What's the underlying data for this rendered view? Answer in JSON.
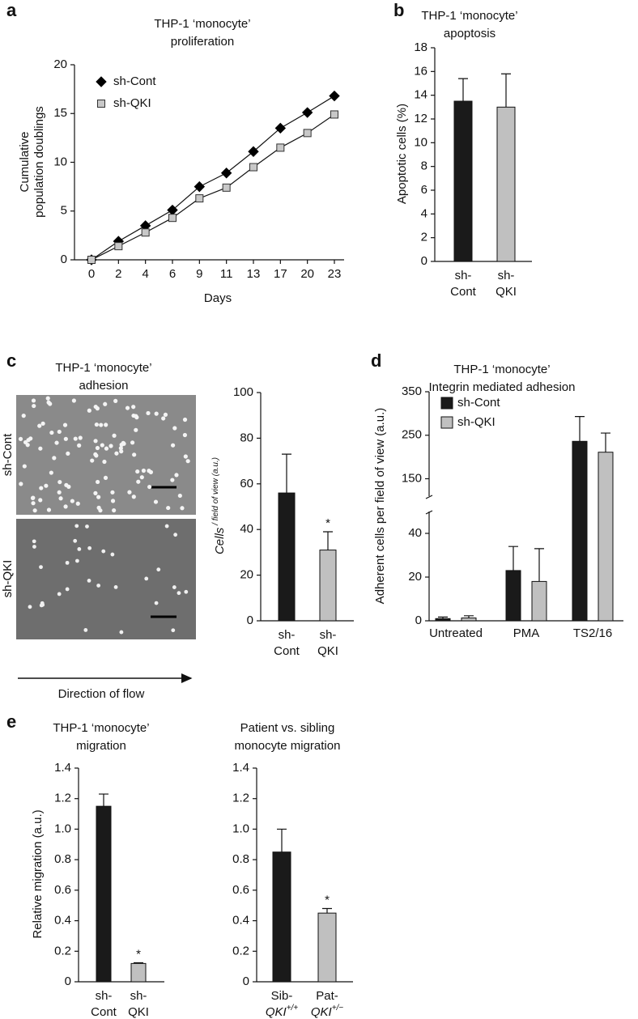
{
  "chart_data": [
    {
      "type": "line",
      "panel": "a",
      "title": "THP-1 ‘monocyte’\nproliferation",
      "x_label": "Days",
      "y_label": "Cumulative\npopulation doublings",
      "categories": [
        "0",
        "2",
        "4",
        "6",
        "9",
        "11",
        "13",
        "17",
        "20",
        "23"
      ],
      "series": [
        {
          "name": "sh-Cont",
          "color": "#000000",
          "marker": "diamond",
          "values": [
            0,
            1.9,
            3.5,
            5.1,
            7.5,
            8.9,
            11.1,
            13.5,
            15.1,
            16.8
          ]
        },
        {
          "name": "sh-QKI",
          "color": "#c8c8c8",
          "marker": "square",
          "values": [
            0,
            1.4,
            2.8,
            4.3,
            6.3,
            7.4,
            9.5,
            11.5,
            13.0,
            14.9
          ]
        }
      ],
      "ylim": [
        0,
        20
      ],
      "yticks": [
        0,
        5,
        10,
        15,
        20
      ],
      "legend": "upper left"
    },
    {
      "type": "bar",
      "panel": "b",
      "title": "THP-1 ‘monocyte’\napoptosis",
      "y_label": "Apoptotic cells (%)",
      "categories": [
        "sh-\nCont",
        "sh-\nQKI"
      ],
      "values": [
        13.5,
        13.0
      ],
      "errors": [
        1.9,
        2.8
      ],
      "colors": [
        "#1a1a1a",
        "#c0c0c0"
      ],
      "ylim": [
        0,
        18
      ],
      "yticks": [
        0,
        2,
        4,
        6,
        8,
        10,
        12,
        14,
        16,
        18
      ]
    },
    {
      "type": "bar",
      "panel": "c",
      "title": "THP-1 ‘monocyte’\nadhesion",
      "y_label": "Cells / field of view (a.u.)",
      "image_labels": [
        "sh-Cont",
        "sh-QKI"
      ],
      "image_caption": "Direction of flow",
      "categories": [
        "sh-\nCont",
        "sh-\nQKI"
      ],
      "values": [
        56,
        31
      ],
      "errors": [
        17,
        8
      ],
      "colors": [
        "#1a1a1a",
        "#c0c0c0"
      ],
      "significance": [
        null,
        "*"
      ],
      "ylim": [
        0,
        100
      ],
      "yticks": [
        0,
        20,
        40,
        60,
        80,
        100
      ]
    },
    {
      "type": "grouped_bar",
      "panel": "d",
      "title": "THP-1 ‘monocyte’\nIntegrin mediated adhesion",
      "y_label": "Adherent cells per field of view (a.u.)",
      "categories": [
        "Untreated",
        "PMA",
        "TS2/16"
      ],
      "series": [
        {
          "name": "sh-Cont",
          "color": "#1a1a1a",
          "values": [
            1,
            23,
            236
          ],
          "errors": [
            0.7,
            11,
            57
          ]
        },
        {
          "name": "sh-QKI",
          "color": "#c0c0c0",
          "values": [
            1.3,
            18,
            211
          ],
          "errors": [
            1,
            15,
            44
          ]
        }
      ],
      "ylim": [
        0,
        350
      ],
      "ybreak": [
        50,
        110
      ],
      "yticks": [
        0,
        20,
        40,
        150,
        250,
        350
      ],
      "legend": "upper left"
    },
    {
      "type": "bar",
      "panel": "e",
      "title": "THP-1 ‘monocyte’\nmigration",
      "y_label": "Relative migration (a.u.)",
      "categories": [
        "sh-\nCont",
        "sh-\nQKI"
      ],
      "values": [
        1.15,
        0.12
      ],
      "errors": [
        0.08,
        0.005
      ],
      "colors": [
        "#1a1a1a",
        "#c0c0c0"
      ],
      "significance": [
        null,
        "*"
      ],
      "ylim": [
        0,
        1.4
      ],
      "yticks": [
        0,
        0.2,
        0.4,
        0.6,
        0.8,
        {
          "value": 1,
          "label": "1.0"
        },
        1.2,
        1.4
      ]
    },
    {
      "type": "bar",
      "title": "Patient vs. sibling\nmonocyte migration",
      "categories": [
        "Sib-\nQKI+/+",
        "Pat-\nQKI+/−"
      ],
      "values": [
        0.85,
        0.45
      ],
      "errors": [
        0.15,
        0.03
      ],
      "colors": [
        "#1a1a1a",
        "#c0c0c0"
      ],
      "significance": [
        null,
        "*"
      ],
      "ylim": [
        0,
        1.4
      ],
      "yticks": [
        0,
        0.2,
        0.4,
        0.6,
        0.8,
        {
          "value": 1,
          "label": "1.0"
        },
        1.2,
        1.4
      ]
    }
  ]
}
